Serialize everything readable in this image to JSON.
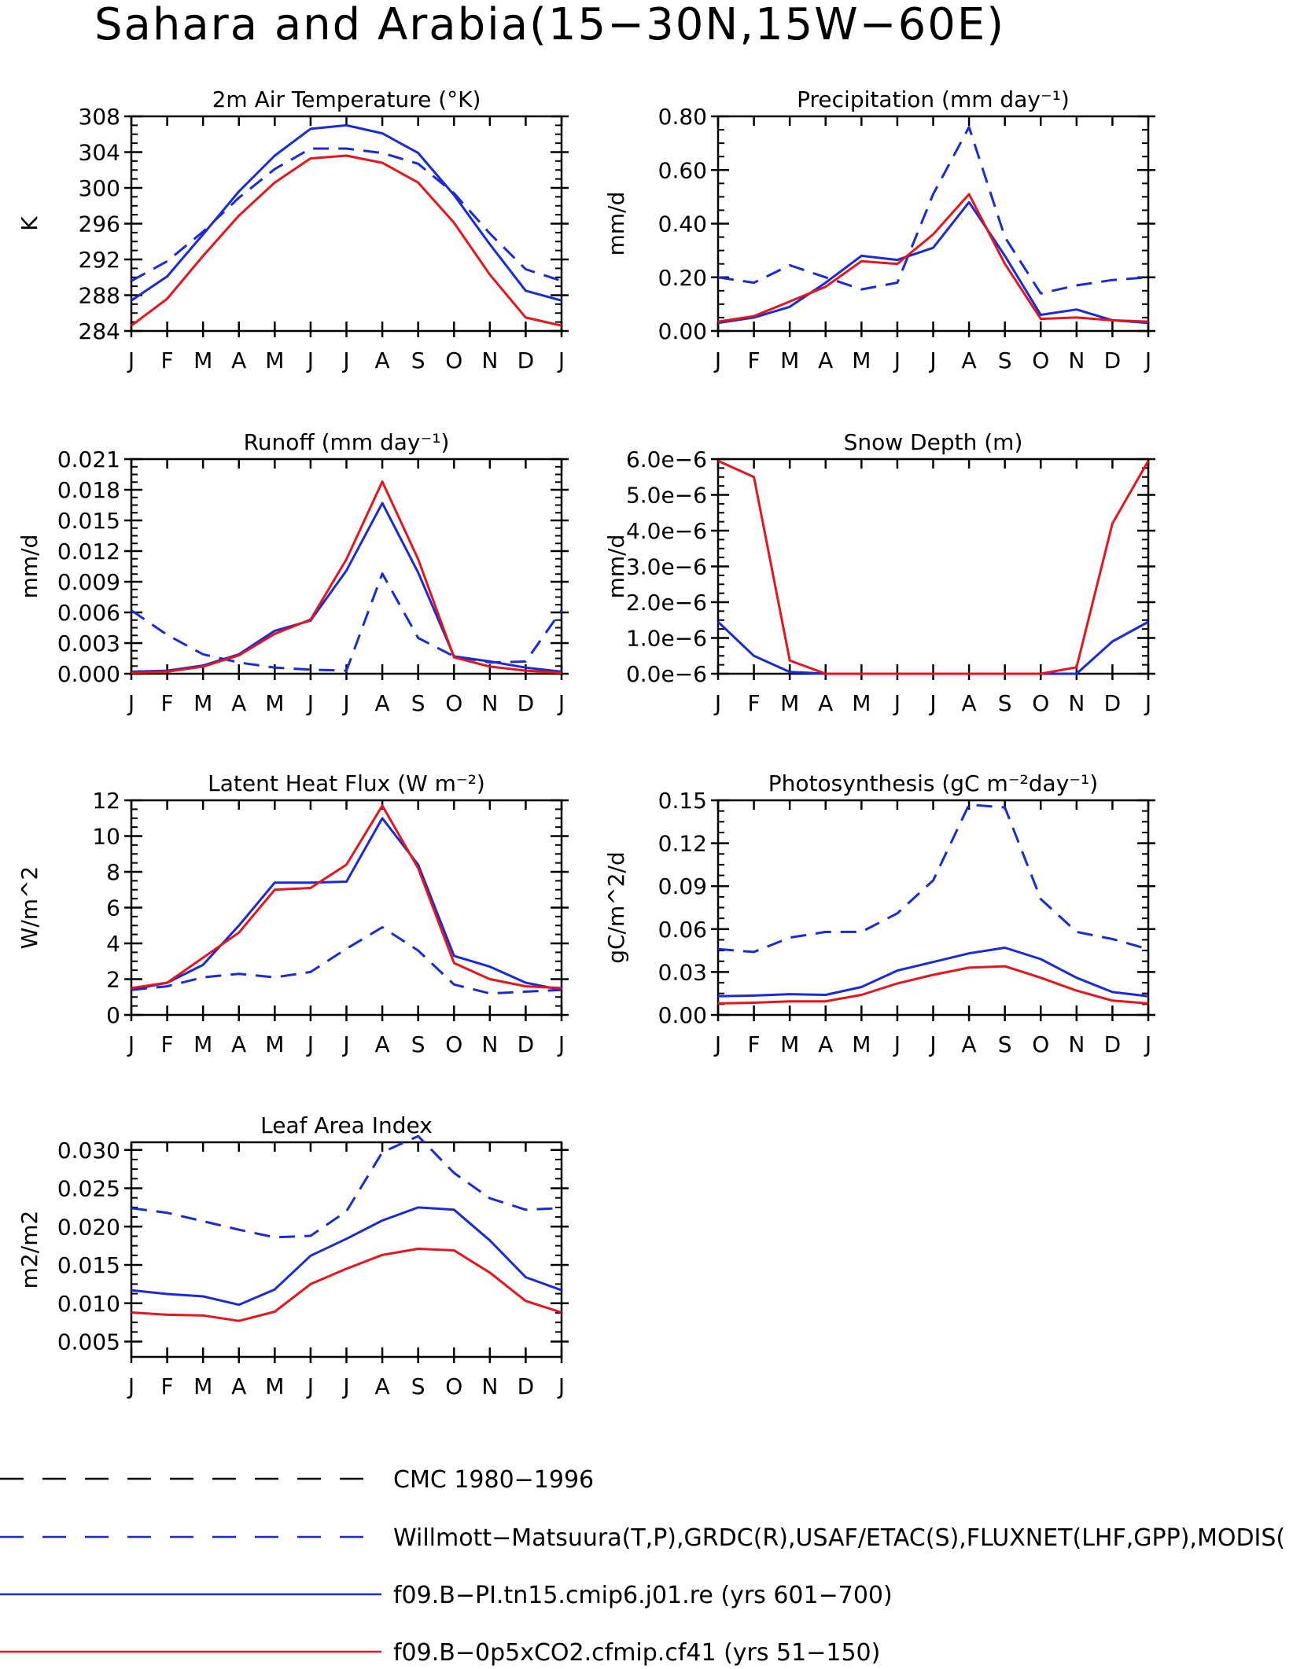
{
  "title": "Sahara and Arabia(15−30N,15W−60E)",
  "months": [
    "J",
    "F",
    "M",
    "A",
    "M",
    "J",
    "J",
    "A",
    "S",
    "O",
    "N",
    "D",
    "J"
  ],
  "colors": {
    "obs": "#1a2bd6",
    "ctrl": "#1a2bd6",
    "exp": "#e8141c",
    "cmc": "#000000"
  },
  "legend": [
    {
      "label": "CMC 1980−1996",
      "color": "#000000",
      "dash": true
    },
    {
      "label": "Willmott−Matsuura(T,P),GRDC(R),USAF/ETAC(S),FLUXNET(LHF,GPP),MODIS(",
      "color": "#1a2bd6",
      "dash": true
    },
    {
      "label": "f09.B−PI.tn15.cmip6.j01.re (yrs 601−700)",
      "color": "#1a2bd6",
      "dash": false
    },
    {
      "label": "f09.B−0p5xCO2.cfmip.cf41 (yrs 51−150)",
      "color": "#e8141c",
      "dash": false
    }
  ],
  "chart_data": [
    {
      "type": "line",
      "title": "2m Air Temperature (°K)",
      "ylabel": "K",
      "ylim": [
        284,
        308
      ],
      "yticks": [
        "284",
        "288",
        "292",
        "296",
        "300",
        "304",
        "308"
      ],
      "series": [
        {
          "name": "Willmott−Matsuura(T,P),GRDC(R),USAF/ETAC(S),FLUXNET(LHF,GPP),MODIS(",
          "style": "obs",
          "values": [
            289.6,
            291.8,
            295.1,
            298.9,
            302.1,
            304.4,
            304.4,
            303.9,
            302.7,
            299.4,
            294.9,
            290.9,
            289.6
          ]
        },
        {
          "name": "f09.B−PI.tn15.cmip6.j01.re (yrs 601−700)",
          "style": "ctrl",
          "values": [
            287.4,
            290.1,
            294.8,
            299.6,
            303.6,
            306.6,
            307.0,
            306.1,
            303.9,
            299.2,
            293.7,
            288.5,
            287.4
          ]
        },
        {
          "name": "f09.B−0p5xCO2.cfmip.cf41 (yrs 51−150)",
          "style": "exp",
          "values": [
            284.6,
            287.6,
            292.4,
            296.9,
            300.6,
            303.3,
            303.6,
            302.8,
            300.6,
            296.1,
            290.3,
            285.5,
            284.6
          ]
        }
      ]
    },
    {
      "type": "line",
      "title": "Precipitation (mm day⁻¹)",
      "ylabel": "mm/d",
      "ylim": [
        0,
        0.8
      ],
      "yticks": [
        "0.00",
        "0.20",
        "0.40",
        "0.60",
        "0.80"
      ],
      "series": [
        {
          "name": "Willmott−Matsuura(T,P),GRDC(R),USAF/ETAC(S),FLUXNET(LHF,GPP),MODIS(",
          "style": "obs",
          "values": [
            0.2,
            0.18,
            0.245,
            0.2,
            0.155,
            0.18,
            0.51,
            0.76,
            0.35,
            0.14,
            0.17,
            0.19,
            0.2
          ]
        },
        {
          "name": "f09.B−PI.tn15.cmip6.j01.re (yrs 601−700)",
          "style": "ctrl",
          "values": [
            0.03,
            0.05,
            0.09,
            0.18,
            0.28,
            0.265,
            0.31,
            0.48,
            0.28,
            0.06,
            0.08,
            0.04,
            0.03
          ]
        },
        {
          "name": "f09.B−0p5xCO2.cfmip.cf41 (yrs 51−150)",
          "style": "exp",
          "values": [
            0.035,
            0.055,
            0.11,
            0.165,
            0.26,
            0.25,
            0.36,
            0.51,
            0.25,
            0.045,
            0.05,
            0.04,
            0.035
          ]
        }
      ]
    },
    {
      "type": "line",
      "title": "Runoff (mm day⁻¹)",
      "ylabel": "mm/d",
      "ylim": [
        0,
        0.021
      ],
      "yticks": [
        "0.000",
        "0.003",
        "0.006",
        "0.009",
        "0.012",
        "0.015",
        "0.018",
        "0.021"
      ],
      "series": [
        {
          "name": "Willmott−Matsuura(T,P),GRDC(R),USAF/ETAC(S),FLUXNET(LHF,GPP),MODIS(",
          "style": "obs",
          "values": [
            0.0062,
            0.0038,
            0.0019,
            0.0011,
            0.0006,
            0.0004,
            0.0003,
            0.0098,
            0.0035,
            0.0017,
            0.0011,
            0.0012,
            0.0062
          ]
        },
        {
          "name": "f09.B−PI.tn15.cmip6.j01.re (yrs 601−700)",
          "style": "ctrl",
          "values": [
            0.0002,
            0.0003,
            0.0008,
            0.0019,
            0.0042,
            0.0052,
            0.0101,
            0.0167,
            0.0099,
            0.0017,
            0.0012,
            0.0006,
            0.0002
          ]
        },
        {
          "name": "f09.B−0p5xCO2.cfmip.cf41 (yrs 51−150)",
          "style": "exp",
          "values": [
            0.0001,
            0.0002,
            0.0007,
            0.0018,
            0.0039,
            0.0053,
            0.0112,
            0.0188,
            0.0112,
            0.0016,
            0.0007,
            0.0003,
            0.0001
          ]
        }
      ]
    },
    {
      "type": "line",
      "title": "Snow Depth (m)",
      "ylabel": "mm/d",
      "ylim": [
        0,
        6e-06
      ],
      "yticks": [
        "0.0e−6",
        "1.0e−6",
        "2.0e−6",
        "3.0e−6",
        "4.0e−6",
        "5.0e−6",
        "6.0e−6"
      ],
      "series": [
        {
          "name": "CMC 1980−1996",
          "style": "cmc",
          "values": [
            0,
            0,
            0,
            0,
            0,
            0,
            0,
            0,
            0,
            0,
            0,
            0,
            0
          ]
        },
        {
          "name": "f09.B−PI.tn15.cmip6.j01.re (yrs 601−700)",
          "style": "ctrl",
          "values": [
            1.45e-06,
            5e-07,
            5e-08,
            0,
            0,
            0,
            0,
            0,
            0,
            0,
            0,
            9e-07,
            1.45e-06
          ]
        },
        {
          "name": "f09.B−0p5xCO2.cfmip.cf41 (yrs 51−150)",
          "style": "exp",
          "values": [
            5.95e-06,
            5.5e-06,
            3.7e-07,
            0,
            0,
            0,
            0,
            0,
            0,
            0,
            1.8e-07,
            4.2e-06,
            5.95e-06
          ]
        }
      ]
    },
    {
      "type": "line",
      "title": "Latent Heat Flux (W m⁻²)",
      "ylabel": "W/m^2",
      "ylim": [
        0,
        12
      ],
      "yticks": [
        "0",
        "2",
        "4",
        "6",
        "8",
        "10",
        "12"
      ],
      "series": [
        {
          "name": "Willmott−Matsuura(T,P),GRDC(R),USAF/ETAC(S),FLUXNET(LHF,GPP),MODIS(",
          "style": "obs",
          "values": [
            1.4,
            1.6,
            2.1,
            2.3,
            2.1,
            2.4,
            3.7,
            4.9,
            3.6,
            1.7,
            1.2,
            1.3,
            1.4
          ]
        },
        {
          "name": "f09.B−PI.tn15.cmip6.j01.re (yrs 601−700)",
          "style": "ctrl",
          "values": [
            1.4,
            1.8,
            2.8,
            5.0,
            7.4,
            7.4,
            7.45,
            11.0,
            8.4,
            3.3,
            2.7,
            1.8,
            1.4
          ]
        },
        {
          "name": "f09.B−0p5xCO2.cfmip.cf41 (yrs 51−150)",
          "style": "exp",
          "values": [
            1.5,
            1.8,
            3.2,
            4.6,
            7.0,
            7.1,
            8.4,
            11.7,
            8.2,
            2.9,
            2.0,
            1.6,
            1.5
          ]
        }
      ]
    },
    {
      "type": "line",
      "title": "Photosynthesis (gC m⁻²day⁻¹)",
      "ylabel": "gC/m^2/d",
      "ylim": [
        0,
        0.15
      ],
      "yticks": [
        "0.00",
        "0.03",
        "0.06",
        "0.09",
        "0.12",
        "0.15"
      ],
      "series": [
        {
          "name": "Willmott−Matsuura(T,P),GRDC(R),USAF/ETAC(S),FLUXNET(LHF,GPP),MODIS(",
          "style": "obs",
          "values": [
            0.046,
            0.044,
            0.054,
            0.058,
            0.058,
            0.071,
            0.094,
            0.147,
            0.145,
            0.081,
            0.058,
            0.053,
            0.046
          ]
        },
        {
          "name": "f09.B−PI.tn15.cmip6.j01.re (yrs 601−700)",
          "style": "ctrl",
          "values": [
            0.013,
            0.0135,
            0.0145,
            0.014,
            0.0195,
            0.031,
            0.037,
            0.043,
            0.047,
            0.039,
            0.026,
            0.016,
            0.013
          ]
        },
        {
          "name": "f09.B−0p5xCO2.cfmip.cf41 (yrs 51−150)",
          "style": "exp",
          "values": [
            0.008,
            0.0085,
            0.0095,
            0.0095,
            0.014,
            0.022,
            0.028,
            0.033,
            0.034,
            0.026,
            0.017,
            0.01,
            0.008
          ]
        }
      ]
    },
    {
      "type": "line",
      "title": "Leaf Area Index",
      "ylabel": "m2/m2",
      "ylim": [
        0.003,
        0.031
      ],
      "yticks": [
        "0.005",
        "0.010",
        "0.015",
        "0.020",
        "0.025",
        "0.030"
      ],
      "series": [
        {
          "name": "Willmott−Matsuura(T,P),GRDC(R),USAF/ETAC(S),FLUXNET(LHF,GPP),MODIS(",
          "style": "obs",
          "values": [
            0.0224,
            0.0218,
            0.0207,
            0.0196,
            0.0186,
            0.0188,
            0.022,
            0.0297,
            0.0318,
            0.027,
            0.0237,
            0.0222,
            0.0224
          ]
        },
        {
          "name": "f09.B−PI.tn15.cmip6.j01.re (yrs 601−700)",
          "style": "ctrl",
          "values": [
            0.0117,
            0.0112,
            0.0109,
            0.0098,
            0.0118,
            0.0162,
            0.0184,
            0.0208,
            0.0225,
            0.0222,
            0.0182,
            0.0134,
            0.0117
          ]
        },
        {
          "name": "f09.B−0p5xCO2.cfmip.cf41 (yrs 51−150)",
          "style": "exp",
          "values": [
            0.0088,
            0.0085,
            0.0084,
            0.0077,
            0.0089,
            0.0125,
            0.0145,
            0.0163,
            0.0171,
            0.0169,
            0.014,
            0.0103,
            0.0088
          ]
        }
      ]
    }
  ]
}
